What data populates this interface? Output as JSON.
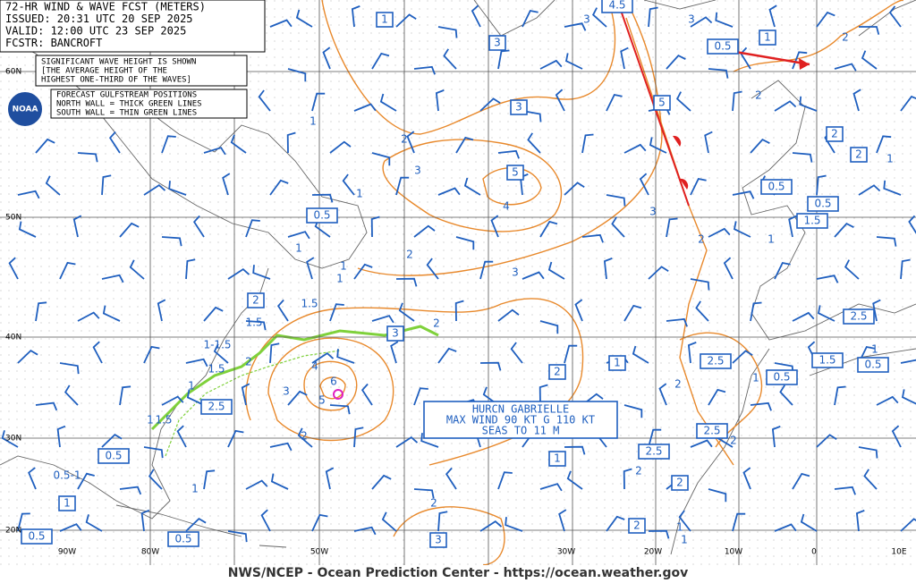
{
  "header": [
    "72-HR WIND & WAVE FCST (METERS)",
    "ISSUED: 20:31 UTC 20 SEP 2025",
    "VALID:  12:00 UTC 23 SEP 2025",
    "FCSTR:  BANCROFT"
  ],
  "wave_note": [
    "SIGNIFICANT WAVE HEIGHT IS SHOWN",
    "[THE AVERAGE HEIGHT OF THE",
    "HIGHEST ONE-THIRD OF THE WAVES]"
  ],
  "gulfstream_note": [
    "FORECAST GULFSTREAM POSITIONS",
    "NORTH WALL = THICK GREEN LINES",
    "SOUTH WALL = THIN GREEN LINES"
  ],
  "logo": "NOAA",
  "latitude_labels": [
    "60N",
    "50N",
    "40N",
    "30N",
    "20N"
  ],
  "longitude_labels": [
    "90W",
    "80W",
    "50W",
    "30W",
    "20W",
    "10W",
    "0",
    "10E"
  ],
  "boxed_heights": [
    "1",
    "4.5",
    "3",
    "0.5",
    "1",
    "5",
    "3",
    "2",
    "2",
    "5",
    "0.5",
    "0.5",
    "1.5",
    "0.5",
    "2",
    "3",
    "2.5",
    "1",
    "2.5",
    "1.5",
    "0.5",
    "0.5",
    "2",
    "2.5",
    "2.5",
    "0.5",
    "1",
    "2.5",
    "2",
    "1",
    "0.5",
    "0.5",
    "3",
    "2"
  ],
  "contour_labels": [
    "1",
    "2",
    "3",
    "4",
    "3",
    "2",
    "3",
    "3",
    "2",
    "2",
    "3",
    "2",
    "1.5",
    "1.5",
    "1-1.5",
    "1.5",
    "2",
    "4",
    "3",
    "6",
    "5",
    "2",
    "2",
    "1",
    "1",
    "1.5",
    "0.5-1",
    "1",
    "2",
    "2",
    "2",
    "2",
    "1",
    "1",
    "1",
    "1",
    "1",
    "1",
    "1",
    "1",
    "1",
    "1"
  ],
  "hurricane": [
    "HURCN GABRIELLE",
    "MAX WIND 90 KT G 110 KT",
    "SEAS TO 11 M"
  ],
  "footer": "NWS/NCEP - Ocean Prediction Center - https://ocean.weather.gov"
}
